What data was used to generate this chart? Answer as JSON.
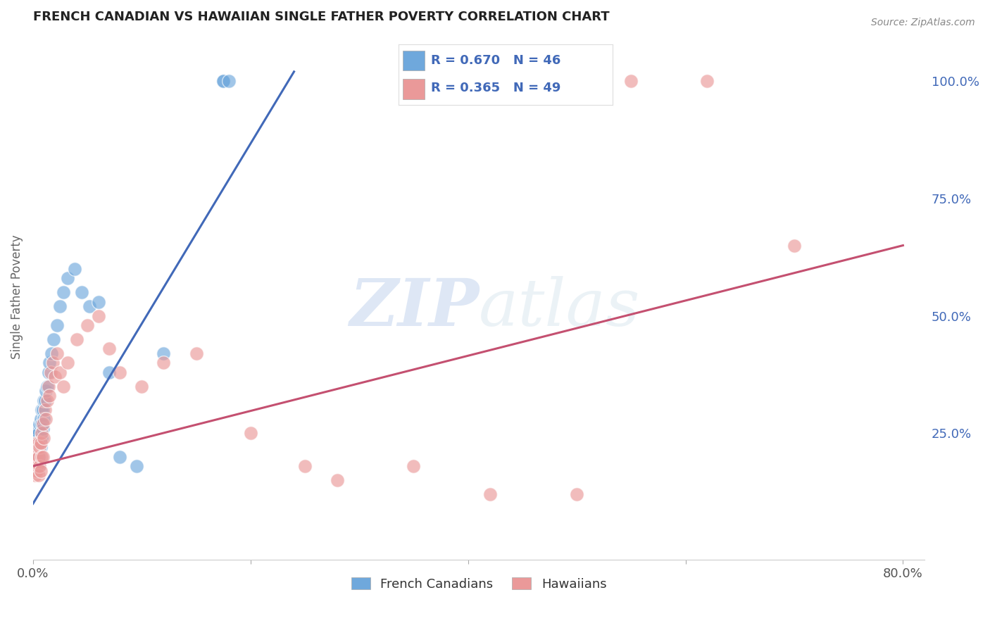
{
  "title": "FRENCH CANADIAN VS HAWAIIAN SINGLE FATHER POVERTY CORRELATION CHART",
  "source": "Source: ZipAtlas.com",
  "ylabel": "Single Father Poverty",
  "blue_color": "#6fa8dc",
  "pink_color": "#ea9999",
  "blue_line_color": "#4169b8",
  "pink_line_color": "#c45070",
  "legend_R_blue": "0.670",
  "legend_N_blue": "46",
  "legend_R_pink": "0.365",
  "legend_N_pink": "49",
  "watermark_zip": "ZIP",
  "watermark_atlas": "atlas",
  "blue_scatter_x": [
    0.001,
    0.002,
    0.002,
    0.003,
    0.003,
    0.003,
    0.004,
    0.004,
    0.004,
    0.005,
    0.005,
    0.005,
    0.006,
    0.006,
    0.006,
    0.007,
    0.007,
    0.008,
    0.008,
    0.008,
    0.009,
    0.009,
    0.01,
    0.01,
    0.011,
    0.012,
    0.013,
    0.014,
    0.015,
    0.017,
    0.019,
    0.022,
    0.025,
    0.028,
    0.032,
    0.038,
    0.045,
    0.052,
    0.06,
    0.07,
    0.08,
    0.095,
    0.12,
    0.175,
    0.175,
    0.18
  ],
  "blue_scatter_y": [
    0.22,
    0.2,
    0.24,
    0.2,
    0.23,
    0.25,
    0.2,
    0.22,
    0.26,
    0.18,
    0.22,
    0.25,
    0.2,
    0.23,
    0.27,
    0.22,
    0.28,
    0.24,
    0.27,
    0.3,
    0.26,
    0.3,
    0.28,
    0.32,
    0.32,
    0.34,
    0.35,
    0.38,
    0.4,
    0.42,
    0.45,
    0.48,
    0.52,
    0.55,
    0.58,
    0.6,
    0.55,
    0.52,
    0.53,
    0.38,
    0.2,
    0.18,
    0.42,
    1.0,
    1.0,
    1.0
  ],
  "pink_scatter_x": [
    0.001,
    0.002,
    0.002,
    0.003,
    0.003,
    0.003,
    0.004,
    0.004,
    0.005,
    0.005,
    0.005,
    0.006,
    0.006,
    0.007,
    0.007,
    0.008,
    0.008,
    0.009,
    0.009,
    0.01,
    0.011,
    0.012,
    0.013,
    0.014,
    0.015,
    0.016,
    0.018,
    0.02,
    0.022,
    0.025,
    0.028,
    0.032,
    0.04,
    0.05,
    0.06,
    0.07,
    0.08,
    0.1,
    0.12,
    0.15,
    0.2,
    0.25,
    0.28,
    0.35,
    0.42,
    0.5,
    0.55,
    0.62,
    0.7
  ],
  "pink_scatter_y": [
    0.18,
    0.16,
    0.2,
    0.17,
    0.2,
    0.23,
    0.18,
    0.22,
    0.16,
    0.2,
    0.23,
    0.18,
    0.22,
    0.17,
    0.23,
    0.2,
    0.25,
    0.2,
    0.27,
    0.24,
    0.3,
    0.28,
    0.32,
    0.35,
    0.33,
    0.38,
    0.4,
    0.37,
    0.42,
    0.38,
    0.35,
    0.4,
    0.45,
    0.48,
    0.5,
    0.43,
    0.38,
    0.35,
    0.4,
    0.42,
    0.25,
    0.18,
    0.15,
    0.18,
    0.12,
    0.12,
    1.0,
    1.0,
    0.65
  ],
  "blue_line_x": [
    0.0,
    0.24
  ],
  "blue_line_y": [
    0.1,
    1.02
  ],
  "pink_line_x": [
    0.0,
    0.8
  ],
  "pink_line_y": [
    0.18,
    0.65
  ],
  "xlim": [
    0.0,
    0.82
  ],
  "ylim": [
    -0.02,
    1.1
  ],
  "x_ticks": [
    0.0,
    0.2,
    0.4,
    0.6,
    0.8
  ],
  "x_tick_labels_show": [
    "0.0%",
    "80.0%"
  ],
  "y_ticks_right": [
    0.25,
    0.5,
    0.75,
    1.0
  ],
  "y_tick_labels_right": [
    "25.0%",
    "50.0%",
    "75.0%",
    "100.0%"
  ]
}
